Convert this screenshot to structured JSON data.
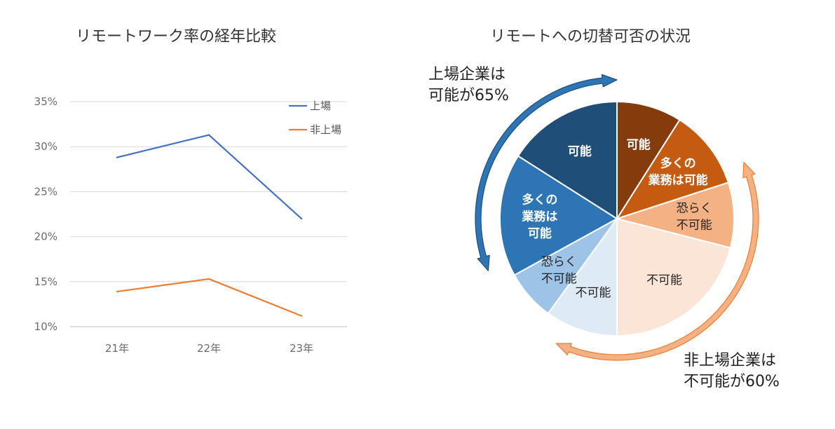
{
  "chart_data": [
    {
      "type": "line",
      "title": "リモートワーク率の経年比較",
      "categories": [
        "21年",
        "22年",
        "23年"
      ],
      "yticks": [
        "35%",
        "30%",
        "25%",
        "20%",
        "15%",
        "10%"
      ],
      "ylim": [
        10,
        35
      ],
      "grid": true,
      "legend_position": "top-right",
      "series": [
        {
          "name": "上場",
          "values": [
            28.8,
            31.3,
            22.0
          ],
          "color": "#4472C4"
        },
        {
          "name": "非上場",
          "values": [
            13.9,
            15.3,
            11.2
          ],
          "color": "#ED7D31"
        }
      ]
    },
    {
      "type": "pie",
      "title": "リモートへの切替可否の状況",
      "slices": [
        {
          "label": "可能",
          "value": 9,
          "color": "#843C0C",
          "text_color": "#ffffff",
          "bold": true
        },
        {
          "label": "多くの 業務は可能",
          "value": 11,
          "color": "#C55A11",
          "text_color": "#ffffff",
          "bold": true
        },
        {
          "label": "恐らく 不可能",
          "value": 9,
          "color": "#F4B183",
          "text_color": "#222222",
          "bold": false
        },
        {
          "label": "不可能",
          "value": 21,
          "color": "#FBE5D6",
          "text_color": "#222222",
          "bold": false
        },
        {
          "label": "不可能",
          "value": 10,
          "color": "#DEEBF7",
          "text_color": "#222222",
          "bold": false
        },
        {
          "label": "恐らく 不可能",
          "value": 7,
          "color": "#9DC3E6",
          "text_color": "#222222",
          "bold": false
        },
        {
          "label": "多くの 業務は 可能",
          "value": 17,
          "color": "#2E75B6",
          "text_color": "#ffffff",
          "bold": true
        },
        {
          "label": "可能",
          "value": 16,
          "color": "#1F4E79",
          "text_color": "#ffffff",
          "bold": true
        }
      ],
      "annotations": [
        {
          "text": "上場企業は 可能が65%",
          "color": "#2E75B6"
        },
        {
          "text": "非上場企業は 不可能が60%",
          "color": "#F4B183"
        }
      ]
    }
  ],
  "callouts": {
    "listed": {
      "line1": "上場企業は",
      "line2": "可能が65%"
    },
    "unlisted": {
      "line1": "非上場企業は",
      "line2": "不可能が60%"
    }
  }
}
